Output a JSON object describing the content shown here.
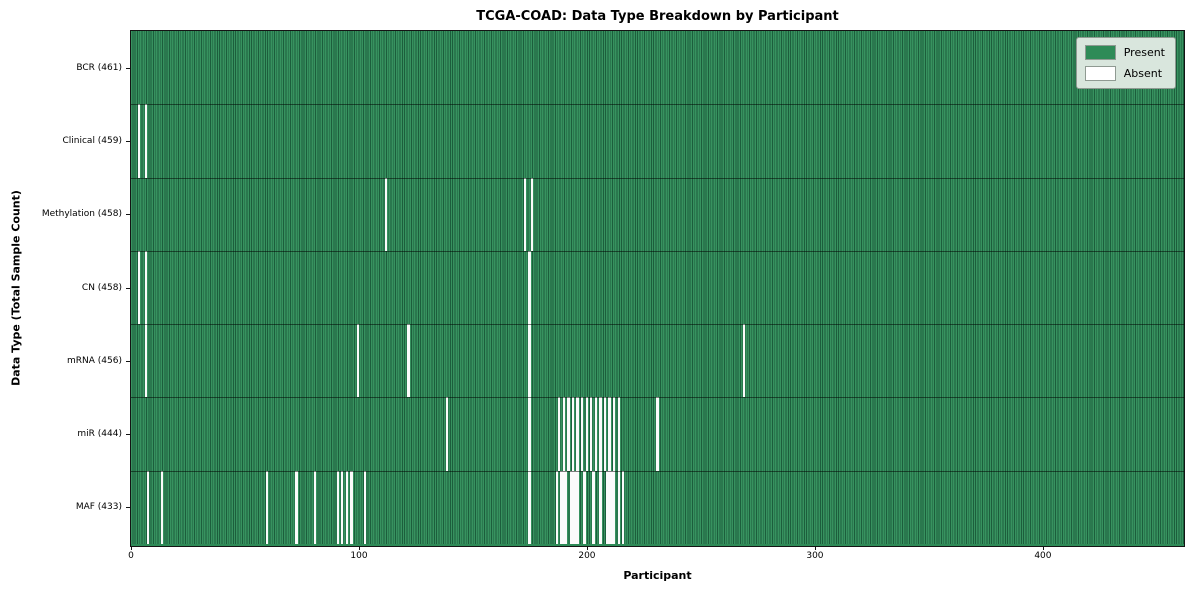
{
  "chart_data": {
    "type": "heatmap",
    "title": "TCGA-COAD: Data Type Breakdown by Participant",
    "xlabel": "Participant",
    "ylabel": "Data Type (Total Sample Count)",
    "x_ticks": [
      0,
      100,
      200,
      300,
      400
    ],
    "xlim": [
      0,
      461
    ],
    "n_participants": 461,
    "grid": false,
    "legend_position": "upper right",
    "legend": [
      {
        "label": "Present",
        "color": "#2e8b57"
      },
      {
        "label": "Absent",
        "color": "#ffffff"
      }
    ],
    "rows": [
      {
        "label": "BCR (461)",
        "data_type": "BCR",
        "present_count": 461,
        "absent_participants": []
      },
      {
        "label": "Clinical (459)",
        "data_type": "Clinical",
        "present_count": 459,
        "absent_participants": [
          3,
          6
        ]
      },
      {
        "label": "Methylation (458)",
        "data_type": "Methylation",
        "present_count": 458,
        "absent_participants": [
          111,
          172,
          175
        ]
      },
      {
        "label": "CN (458)",
        "data_type": "CN",
        "present_count": 458,
        "absent_participants": [
          3,
          6,
          174
        ]
      },
      {
        "label": "mRNA (456)",
        "data_type": "mRNA",
        "present_count": 456,
        "absent_participants": [
          6,
          99,
          121,
          174,
          268
        ]
      },
      {
        "label": "miR (444)",
        "data_type": "miR",
        "present_count": 444,
        "absent_participants": [
          138,
          174,
          187,
          189,
          191,
          193,
          195,
          197,
          199,
          201,
          203,
          205,
          207,
          209,
          211,
          213,
          230
        ]
      },
      {
        "label": "MAF (433)",
        "data_type": "MAF",
        "present_count": 433,
        "absent_participants": [
          7,
          13,
          59,
          72,
          80,
          90,
          92,
          94,
          96,
          102,
          174,
          186,
          188,
          189,
          190,
          192,
          193,
          194,
          195,
          198,
          202,
          205,
          208,
          209,
          210,
          211,
          213,
          215
        ]
      }
    ],
    "colors": {
      "present": "#2e8b57",
      "present_stripe_dark": "#1c5e3c",
      "absent": "#ffffff",
      "legend_background": "#d9e6dd"
    }
  }
}
